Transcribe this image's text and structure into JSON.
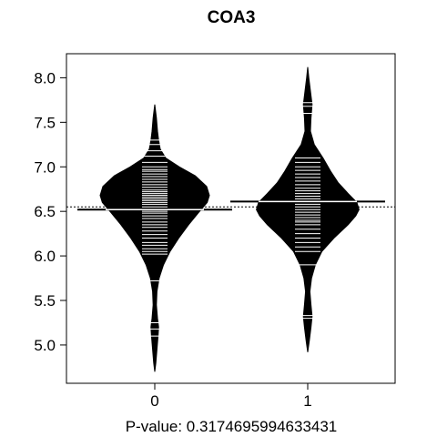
{
  "chart_data": {
    "type": "beanplot",
    "title": "COA3",
    "xlabel": "P-value: 0.3174695994633431",
    "ylabel": "",
    "categories": [
      "0",
      "1"
    ],
    "ylim": [
      4.57,
      8.27
    ],
    "yticks": [
      5.0,
      5.5,
      6.0,
      6.5,
      7.0,
      7.5,
      8.0
    ],
    "ytick_labels": [
      "5.0",
      "5.5",
      "6.0",
      "6.5",
      "7.0",
      "7.5",
      "8.0"
    ],
    "overall_mean": 6.55,
    "colors": {
      "bean": "#000000",
      "line": "#ffffff",
      "background": "#ffffff"
    },
    "series": [
      {
        "category": "0",
        "mean": 6.52,
        "range": [
          4.7,
          7.7
        ],
        "density": [
          [
            4.7,
            0.0
          ],
          [
            4.8,
            0.02
          ],
          [
            4.95,
            0.04
          ],
          [
            5.1,
            0.06
          ],
          [
            5.2,
            0.07
          ],
          [
            5.3,
            0.05
          ],
          [
            5.45,
            0.03
          ],
          [
            5.6,
            0.04
          ],
          [
            5.75,
            0.08
          ],
          [
            5.9,
            0.16
          ],
          [
            6.05,
            0.28
          ],
          [
            6.2,
            0.44
          ],
          [
            6.35,
            0.62
          ],
          [
            6.5,
            0.82
          ],
          [
            6.6,
            0.96
          ],
          [
            6.68,
            1.0
          ],
          [
            6.78,
            0.95
          ],
          [
            6.9,
            0.74
          ],
          [
            7.0,
            0.45
          ],
          [
            7.1,
            0.2
          ],
          [
            7.2,
            0.1
          ],
          [
            7.3,
            0.07
          ],
          [
            7.4,
            0.05
          ],
          [
            7.55,
            0.03
          ],
          [
            7.7,
            0.0
          ]
        ],
        "points": [
          5.1,
          5.18,
          5.25,
          5.72,
          6.02,
          6.05,
          6.08,
          6.12,
          6.15,
          6.2,
          6.24,
          6.28,
          6.32,
          6.35,
          6.38,
          6.42,
          6.45,
          6.48,
          6.5,
          6.52,
          6.55,
          6.58,
          6.6,
          6.62,
          6.64,
          6.66,
          6.68,
          6.7,
          6.72,
          6.74,
          6.77,
          6.8,
          6.83,
          6.86,
          6.89,
          6.92,
          6.95,
          6.97,
          7.0,
          7.05,
          7.12,
          7.18,
          7.25,
          7.3
        ]
      },
      {
        "category": "1",
        "mean": 6.61,
        "range": [
          4.92,
          8.12
        ],
        "density": [
          [
            4.92,
            0.0
          ],
          [
            5.05,
            0.03
          ],
          [
            5.2,
            0.06
          ],
          [
            5.32,
            0.08
          ],
          [
            5.45,
            0.06
          ],
          [
            5.6,
            0.04
          ],
          [
            5.75,
            0.07
          ],
          [
            5.9,
            0.14
          ],
          [
            6.05,
            0.26
          ],
          [
            6.2,
            0.48
          ],
          [
            6.35,
            0.74
          ],
          [
            6.45,
            0.88
          ],
          [
            6.52,
            0.94
          ],
          [
            6.6,
            0.9
          ],
          [
            6.7,
            0.74
          ],
          [
            6.82,
            0.56
          ],
          [
            6.95,
            0.42
          ],
          [
            7.1,
            0.28
          ],
          [
            7.25,
            0.12
          ],
          [
            7.4,
            0.05
          ],
          [
            7.55,
            0.06
          ],
          [
            7.7,
            0.08
          ],
          [
            7.85,
            0.05
          ],
          [
            8.0,
            0.02
          ],
          [
            8.12,
            0.0
          ]
        ],
        "points": [
          5.3,
          5.33,
          5.9,
          6.05,
          6.1,
          6.15,
          6.2,
          6.25,
          6.3,
          6.35,
          6.38,
          6.4,
          6.43,
          6.46,
          6.49,
          6.52,
          6.55,
          6.58,
          6.61,
          6.64,
          6.67,
          6.7,
          6.73,
          6.76,
          6.8,
          6.84,
          6.88,
          6.92,
          6.96,
          7.0,
          7.05,
          7.1,
          7.6,
          7.68,
          7.72
        ]
      }
    ]
  }
}
